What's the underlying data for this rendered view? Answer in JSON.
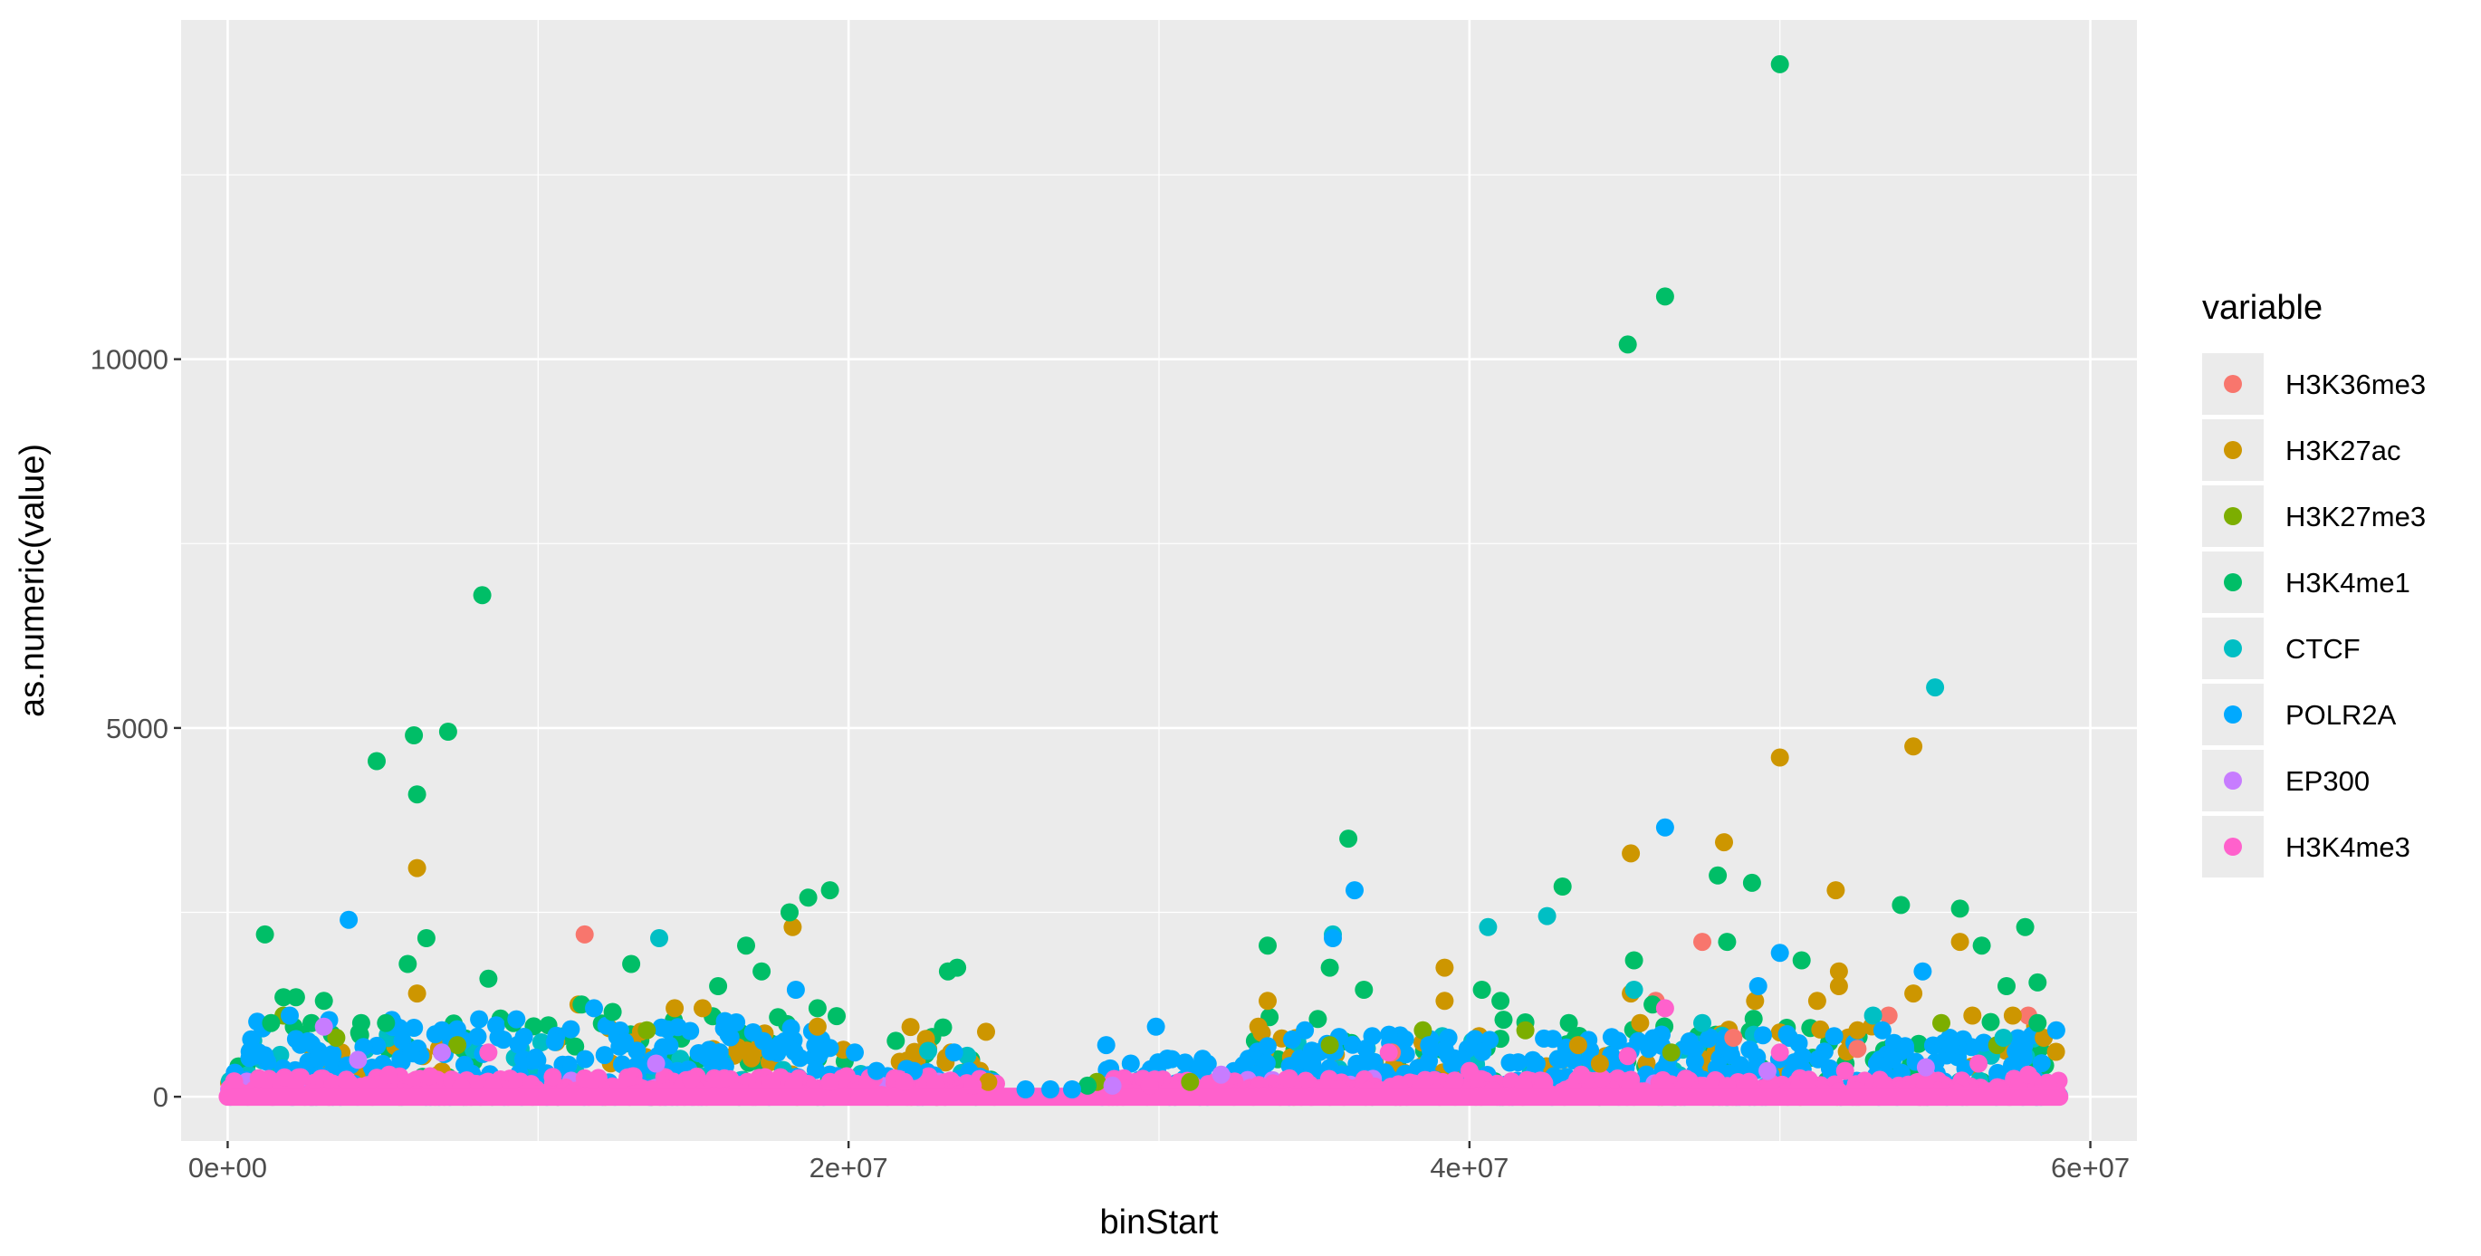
{
  "chart_data": {
    "type": "scatter",
    "xlabel": "binStart",
    "ylabel": "as.numeric(value)",
    "xlim": [
      -1500000,
      61500000
    ],
    "ylim": [
      -600,
      14600
    ],
    "x_ticks": [
      {
        "value": 0,
        "label": "0e+00"
      },
      {
        "value": 20000000,
        "label": "2e+07"
      },
      {
        "value": 40000000,
        "label": "4e+07"
      },
      {
        "value": 60000000,
        "label": "6e+07"
      }
    ],
    "y_ticks": [
      {
        "value": 0,
        "label": "0"
      },
      {
        "value": 5000,
        "label": "5000"
      },
      {
        "value": 10000,
        "label": "10000"
      }
    ],
    "x_minor": [
      10000000,
      30000000,
      50000000
    ],
    "y_minor": [
      2500,
      7500,
      12500
    ],
    "grid": true,
    "background": "#ebebeb",
    "legend": {
      "title": "variable",
      "position": "right"
    },
    "series": [
      {
        "name": "H3K36me3",
        "color": "#F8766D",
        "points": [
          [
            11500000,
            2200
          ],
          [
            47500000,
            2100
          ],
          [
            46000000,
            1300
          ],
          [
            53500000,
            1100
          ],
          [
            52500000,
            650
          ],
          [
            58000000,
            1100
          ],
          [
            37500000,
            600
          ],
          [
            48500000,
            800
          ]
        ]
      },
      {
        "name": "H3K27ac",
        "color": "#CD9600",
        "points": [
          [
            6100000,
            3100
          ],
          [
            6100000,
            1400
          ],
          [
            18200000,
            2300
          ],
          [
            11300000,
            1250
          ],
          [
            14400000,
            1200
          ],
          [
            15300000,
            1200
          ],
          [
            19000000,
            950
          ],
          [
            23300000,
            600
          ],
          [
            24500000,
            200
          ],
          [
            33200000,
            950
          ],
          [
            33500000,
            1300
          ],
          [
            39200000,
            1750
          ],
          [
            39200000,
            1300
          ],
          [
            43500000,
            700
          ],
          [
            45200000,
            3300
          ],
          [
            45200000,
            1400
          ],
          [
            48200000,
            3450
          ],
          [
            49200000,
            1300
          ],
          [
            50000000,
            4600
          ],
          [
            51200000,
            1300
          ],
          [
            51800000,
            2800
          ],
          [
            51900000,
            1700
          ],
          [
            51900000,
            1500
          ],
          [
            52500000,
            900
          ],
          [
            54300000,
            4750
          ],
          [
            54300000,
            1400
          ],
          [
            55800000,
            2100
          ],
          [
            56200000,
            1100
          ],
          [
            57500000,
            1100
          ],
          [
            58500000,
            800
          ],
          [
            45500000,
            1000
          ],
          [
            44200000,
            450
          ]
        ]
      },
      {
        "name": "H3K27me3",
        "color": "#7CAE00",
        "points": [
          [
            1800000,
            1100
          ],
          [
            3500000,
            800
          ],
          [
            7400000,
            700
          ],
          [
            13500000,
            900
          ],
          [
            28000000,
            200
          ],
          [
            31000000,
            200
          ],
          [
            38500000,
            900
          ],
          [
            41800000,
            900
          ],
          [
            46500000,
            600
          ],
          [
            55200000,
            1000
          ],
          [
            57000000,
            700
          ],
          [
            35500000,
            700
          ]
        ]
      },
      {
        "name": "H3K4me1",
        "color": "#00BE67",
        "points": [
          [
            1200000,
            2200
          ],
          [
            4800000,
            4550
          ],
          [
            6000000,
            4900
          ],
          [
            6100000,
            4100
          ],
          [
            7100000,
            4950
          ],
          [
            6400000,
            2150
          ],
          [
            5800000,
            1800
          ],
          [
            8200000,
            6800
          ],
          [
            8400000,
            1600
          ],
          [
            1800000,
            1350
          ],
          [
            2200000,
            1350
          ],
          [
            3100000,
            1300
          ],
          [
            11400000,
            1250
          ],
          [
            13000000,
            1800
          ],
          [
            15800000,
            1500
          ],
          [
            16700000,
            2050
          ],
          [
            17200000,
            1700
          ],
          [
            18100000,
            2500
          ],
          [
            18700000,
            2700
          ],
          [
            19400000,
            2800
          ],
          [
            19000000,
            1200
          ],
          [
            23200000,
            1700
          ],
          [
            23500000,
            1750
          ],
          [
            33500000,
            2050
          ],
          [
            35500000,
            1750
          ],
          [
            36100000,
            3500
          ],
          [
            36600000,
            1450
          ],
          [
            40400000,
            1450
          ],
          [
            41000000,
            1300
          ],
          [
            43000000,
            2850
          ],
          [
            45100000,
            10200
          ],
          [
            46300000,
            10850
          ],
          [
            50000000,
            14000
          ],
          [
            45300000,
            1850
          ],
          [
            48000000,
            3000
          ],
          [
            48300000,
            2100
          ],
          [
            49100000,
            2900
          ],
          [
            50700000,
            1850
          ],
          [
            53900000,
            2600
          ],
          [
            55800000,
            2550
          ],
          [
            56500000,
            2050
          ],
          [
            57300000,
            1500
          ],
          [
            57900000,
            2300
          ],
          [
            58300000,
            1550
          ],
          [
            58300000,
            1000
          ],
          [
            1400000,
            1000
          ],
          [
            2700000,
            1000
          ],
          [
            4300000,
            1000
          ],
          [
            5100000,
            1000
          ],
          [
            9200000,
            1000
          ],
          [
            12400000,
            1150
          ],
          [
            27700000,
            150
          ],
          [
            43200000,
            1000
          ],
          [
            45900000,
            1250
          ]
        ]
      },
      {
        "name": "CTCF",
        "color": "#00BFC4",
        "points": [
          [
            13900000,
            2150
          ],
          [
            40600000,
            2300
          ],
          [
            42500000,
            2450
          ],
          [
            45300000,
            1450
          ],
          [
            55000000,
            5550
          ],
          [
            35600000,
            2200
          ],
          [
            47500000,
            1000
          ],
          [
            53000000,
            1100
          ],
          [
            57200000,
            800
          ]
        ]
      },
      {
        "name": "POLR2A",
        "color": "#00A9FF",
        "points": [
          [
            3900000,
            2400
          ],
          [
            46300000,
            3650
          ],
          [
            36300000,
            2800
          ],
          [
            35600000,
            2150
          ],
          [
            54600000,
            1700
          ],
          [
            50000000,
            1950
          ],
          [
            49300000,
            1500
          ],
          [
            18300000,
            1450
          ],
          [
            11800000,
            1200
          ],
          [
            23400000,
            600
          ],
          [
            28300000,
            700
          ],
          [
            29900000,
            950
          ],
          [
            38700000,
            700
          ],
          [
            34700000,
            900
          ],
          [
            22100000,
            350
          ],
          [
            20900000,
            350
          ],
          [
            20200000,
            600
          ],
          [
            26500000,
            100
          ],
          [
            25700000,
            100
          ],
          [
            27200000,
            100
          ],
          [
            53300000,
            900
          ],
          [
            58900000,
            900
          ],
          [
            8100000,
            1050
          ],
          [
            9300000,
            1050
          ],
          [
            1000000,
            600
          ],
          [
            2000000,
            1100
          ],
          [
            6900000,
            900
          ]
        ]
      },
      {
        "name": "EP300",
        "color": "#C77CFF",
        "points": [
          [
            3100000,
            950
          ],
          [
            4200000,
            500
          ],
          [
            32000000,
            300
          ],
          [
            13800000,
            450
          ],
          [
            6900000,
            600
          ],
          [
            28500000,
            150
          ],
          [
            49600000,
            350
          ],
          [
            54700000,
            400
          ]
        ]
      },
      {
        "name": "H3K4me3",
        "color": "#FF61CC",
        "points": [
          [
            8400000,
            600
          ],
          [
            37400000,
            600
          ],
          [
            46300000,
            1200
          ],
          [
            45100000,
            550
          ],
          [
            50000000,
            600
          ],
          [
            56400000,
            450
          ],
          [
            1000000,
            250
          ],
          [
            5200000,
            300
          ],
          [
            16000000,
            250
          ],
          [
            21800000,
            200
          ],
          [
            24000000,
            150
          ],
          [
            40000000,
            350
          ],
          [
            52100000,
            350
          ],
          [
            58000000,
            300
          ],
          [
            11500000,
            250
          ],
          [
            19400000,
            200
          ],
          [
            34200000,
            250
          ],
          [
            43600000,
            300
          ],
          [
            29700000,
            150
          ]
        ]
      }
    ],
    "bands": [
      {
        "series": "H3K4me1",
        "color": "#00BE67",
        "segments": [
          [
            0,
            24700000,
            1100
          ],
          [
            32400000,
            59000000,
            1100
          ]
        ],
        "count": 260
      },
      {
        "series": "H3K27ac",
        "color": "#CD9600",
        "segments": [
          [
            0,
            24700000,
            950
          ],
          [
            32400000,
            59000000,
            1050
          ]
        ],
        "count": 200
      },
      {
        "series": "CTCF",
        "color": "#00BFC4",
        "segments": [
          [
            0,
            24700000,
            900
          ],
          [
            32400000,
            59000000,
            900
          ]
        ],
        "count": 140
      },
      {
        "series": "POLR2A",
        "color": "#00A9FF",
        "segments": [
          [
            0,
            19500000,
            1050
          ],
          [
            19500000,
            24800000,
            380
          ],
          [
            27900000,
            32500000,
            520
          ],
          [
            32500000,
            59000000,
            850
          ]
        ],
        "count": 900
      },
      {
        "series": "EP300",
        "color": "#C77CFF",
        "segments": [
          [
            0,
            24700000,
            250
          ],
          [
            27900000,
            59000000,
            250
          ]
        ],
        "count": 80
      },
      {
        "series": "H3K4me3",
        "color": "#FF61CC",
        "segments": [
          [
            0,
            24800000,
            280
          ],
          [
            27800000,
            59000000,
            250
          ]
        ],
        "count": 1000
      }
    ],
    "flat_line": {
      "color": "#FF61CC",
      "x_start": 0,
      "x_end": 59000000,
      "y": 0
    }
  }
}
